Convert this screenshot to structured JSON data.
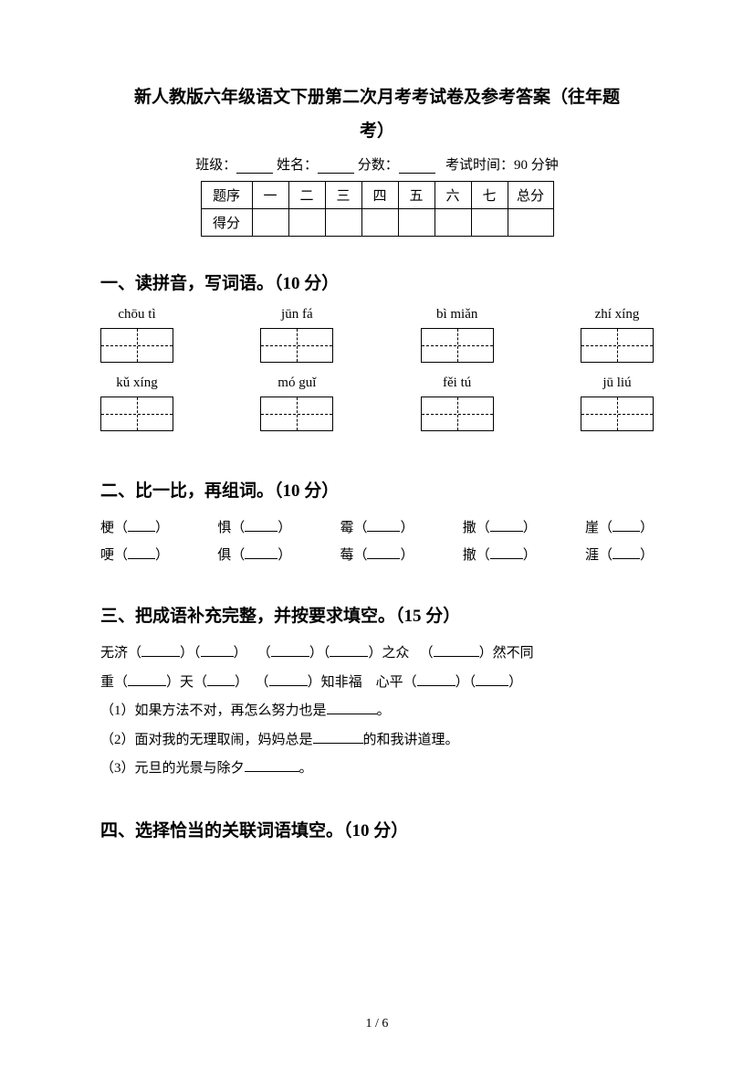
{
  "title": "新人教版六年级语文下册第二次月考考试卷及参考答案（往年题",
  "subtitle": "考）",
  "info": {
    "class_label": "班级：",
    "name_label": "姓名：",
    "score_label": "分数：",
    "time_label": "考试时间：90 分钟"
  },
  "score_table": {
    "row1_label": "题序",
    "row2_label": "得分",
    "cols": [
      "一",
      "二",
      "三",
      "四",
      "五",
      "六",
      "七"
    ],
    "total": "总分"
  },
  "section1": {
    "title": "一、读拼音，写词语。（10 分）",
    "row1": [
      "chōu tì",
      "jūn fá",
      "bì miǎn",
      "zhí xíng"
    ],
    "row2": [
      "kǔ xíng",
      "mó guǐ",
      "fěi tú",
      "jū liú"
    ]
  },
  "section2": {
    "title": "二、比一比，再组词。（10 分）",
    "row1": [
      "梗（",
      "惧（",
      "霉（",
      "撒（",
      "崖（"
    ],
    "row2": [
      "哽（",
      "俱（",
      "莓（",
      "撤（",
      "涯（"
    ],
    "close": "）"
  },
  "section3": {
    "title": "三、把成语补充完整，并按要求填空。（15 分）",
    "l1a": "无济（",
    "l1b": "）（",
    "l1c": "）",
    "l1d": "（",
    "l1e": "）（",
    "l1f": "）之众",
    "l1g": "（",
    "l1h": "）然不同",
    "l2a": "重（",
    "l2b": "）天（",
    "l2c": "）",
    "l2d": "（",
    "l2e": "）知非福",
    "l2f": "心平（",
    "l2g": "）（",
    "l2h": "）",
    "sub1": "（1）如果方法不对，再怎么努力也是",
    "sub1_end": "。",
    "sub2": "（2）面对我的无理取闹，妈妈总是",
    "sub2_end": "的和我讲道理。",
    "sub3": "（3）元旦的光景与除夕",
    "sub3_end": "。"
  },
  "section4": {
    "title": "四、选择恰当的关联词语填空。（10 分）"
  },
  "page_num": "1  /  6"
}
